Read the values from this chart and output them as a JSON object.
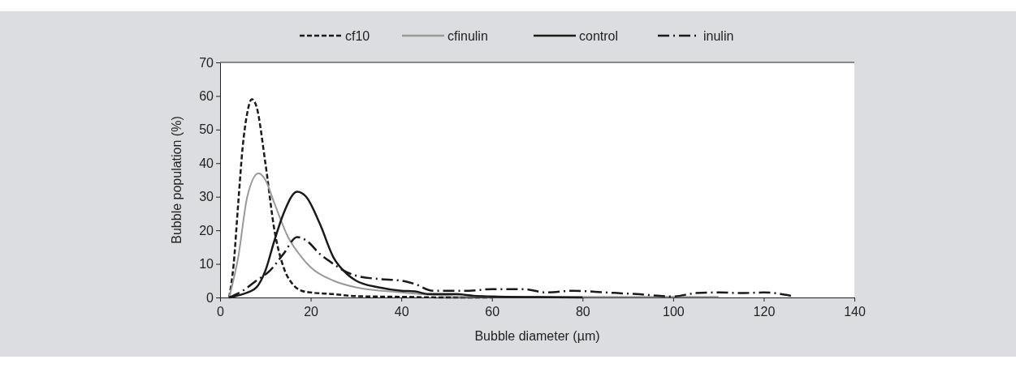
{
  "chart_data": {
    "type": "line",
    "xlabel": "Bubble diameter (µm)",
    "ylabel": "Bubble population (%)",
    "xlim": [
      0,
      140
    ],
    "xticks": [
      0,
      20,
      40,
      60,
      80,
      100,
      120,
      140
    ],
    "ylim": [
      0,
      70
    ],
    "yticks": [
      0,
      10,
      20,
      30,
      40,
      50,
      60,
      70
    ],
    "grid": false,
    "legend": "top",
    "marker": "none",
    "series": [
      {
        "name": "cf10",
        "color": "#1a1a1a",
        "line_style": "dashed",
        "x": [
          2,
          3,
          4,
          5,
          6,
          7,
          8,
          10,
          12,
          14,
          16,
          18,
          20,
          25,
          30,
          40,
          50,
          60
        ],
        "values": [
          0,
          10,
          28,
          45,
          55,
          59,
          57,
          40,
          20,
          9,
          4,
          2,
          1.5,
          1,
          0.4,
          0.2,
          0,
          0
        ]
      },
      {
        "name": "cfinulin",
        "color": "#999999",
        "line_style": "solid",
        "x": [
          2,
          4,
          6,
          8.5,
          10,
          12,
          15,
          18,
          20,
          25,
          30,
          40,
          50,
          60,
          80,
          100,
          110
        ],
        "values": [
          0,
          12,
          30,
          37,
          35,
          28,
          18,
          12,
          9,
          5,
          3,
          1.5,
          0.5,
          0.2,
          0.2,
          0.2,
          0.2
        ]
      },
      {
        "name": "control",
        "color": "#1a1a1a",
        "line_style": "solid",
        "x": [
          2,
          5,
          8,
          10,
          12,
          14,
          17,
          19,
          22,
          25,
          28,
          30,
          35,
          40,
          43,
          46,
          52,
          56,
          60,
          70,
          80
        ],
        "values": [
          0,
          1,
          3,
          8,
          17,
          25,
          31.5,
          30,
          22,
          12,
          7,
          5,
          3,
          2,
          1.8,
          1,
          1,
          0.5,
          0.3,
          0.1,
          0
        ]
      },
      {
        "name": "inulin",
        "color": "#1a1a1a",
        "line_style": "dashdot",
        "x": [
          2,
          5,
          8,
          11,
          14,
          17,
          19,
          22,
          25,
          28,
          30,
          35,
          40,
          43,
          47,
          55,
          60,
          67,
          72,
          78,
          85,
          92,
          100,
          105,
          110,
          115,
          120,
          126
        ],
        "values": [
          0,
          2,
          5,
          8,
          13,
          18,
          17,
          13,
          10,
          7.5,
          6.5,
          5.5,
          5,
          4,
          2,
          2,
          2.5,
          2.5,
          1.5,
          2,
          1.5,
          1,
          0.3,
          1.3,
          1.5,
          1.3,
          1.5,
          0.5
        ]
      }
    ]
  }
}
